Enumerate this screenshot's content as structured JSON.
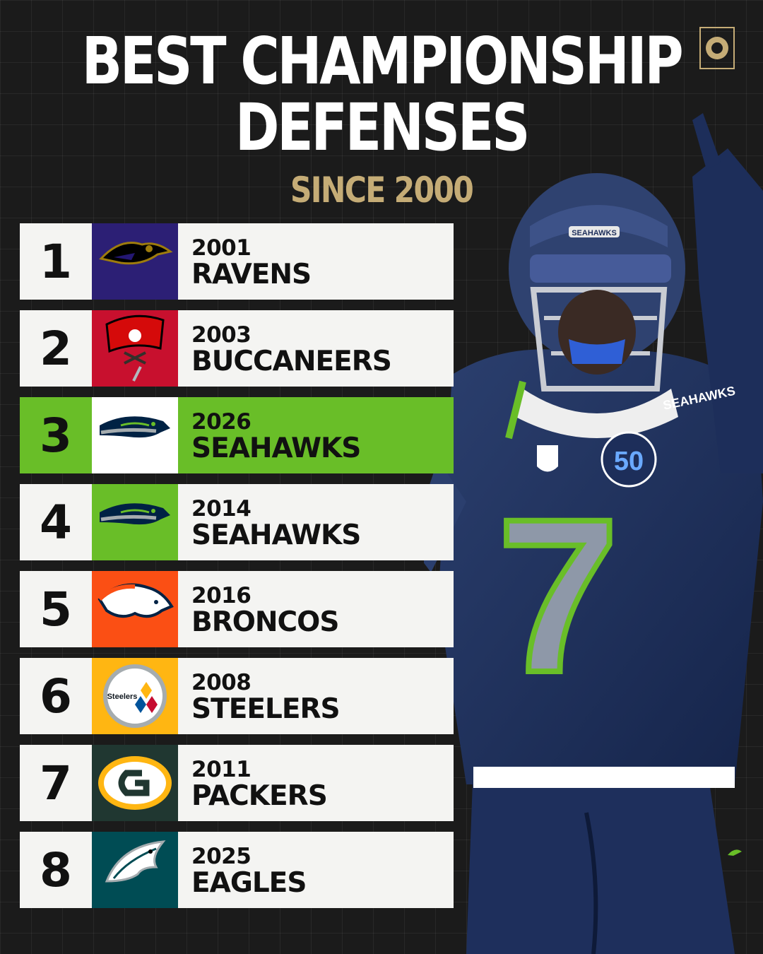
{
  "header": {
    "title_line1": "BEST CHAMPIONSHIP",
    "title_line2": "DEFENSES",
    "subtitle": "SINCE 2000"
  },
  "colors": {
    "background": "#1b1b1b",
    "gold": "#c5ac76",
    "highlight": "#69be28",
    "row": "#f4f4f2"
  },
  "rankings": [
    {
      "rank": "1",
      "year": "2001",
      "team": "RAVENS",
      "logo": "ravens-logo",
      "logo_bg": "#2c1f75"
    },
    {
      "rank": "2",
      "year": "2003",
      "team": "BUCCANEERS",
      "logo": "buccaneers-logo",
      "logo_bg": "#c8102e"
    },
    {
      "rank": "3",
      "year": "2026",
      "team": "SEAHAWKS",
      "logo": "seahawks-logo",
      "logo_bg": "#ffffff",
      "highlight": true
    },
    {
      "rank": "4",
      "year": "2014",
      "team": "SEAHAWKS",
      "logo": "seahawks-logo",
      "logo_bg": "#69be28"
    },
    {
      "rank": "5",
      "year": "2016",
      "team": "BRONCOS",
      "logo": "broncos-logo",
      "logo_bg": "#fb4f14"
    },
    {
      "rank": "6",
      "year": "2008",
      "team": "STEELERS",
      "logo": "steelers-logo",
      "logo_bg": "#ffb612",
      "logo_text": "Steelers"
    },
    {
      "rank": "7",
      "year": "2011",
      "team": "PACKERS",
      "logo": "packers-logo",
      "logo_bg": "#203731"
    },
    {
      "rank": "8",
      "year": "2025",
      "team": "EAGLES",
      "logo": "eagles-logo",
      "logo_bg": "#004c54"
    }
  ],
  "player": {
    "helmet_text": "SEAHAWKS",
    "jersey_text": "SEAHAWKS",
    "jersey_number": "7",
    "patch_text": "50"
  }
}
